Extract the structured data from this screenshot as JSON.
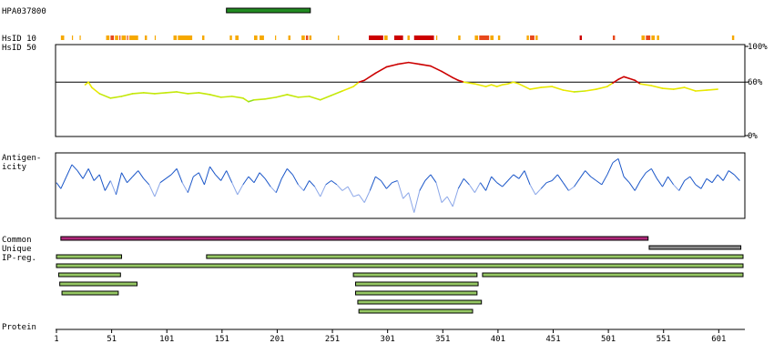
{
  "antibody_id": "HPA037800",
  "labels": {
    "hsid10": "HsID 10",
    "hsid50": "HsID 50",
    "antigenicity_line1": "Antigen-",
    "antigenicity_line2": "icity",
    "common": "Common",
    "unique": "Unique",
    "ipreg": "IP-reg.",
    "protein": "Protein"
  },
  "chart_data": {
    "type": "line",
    "sequence_length": 623,
    "x_ticks": [
      1,
      51,
      101,
      151,
      201,
      251,
      301,
      351,
      401,
      451,
      501,
      551,
      601
    ],
    "antigen_region": {
      "start": 155,
      "end": 231,
      "color": "#228b22"
    },
    "hsid10_segments": [
      {
        "start": 5,
        "end": 8,
        "color": "#f6a800"
      },
      {
        "start": 15,
        "end": 16,
        "color": "#f6a800"
      },
      {
        "start": 22,
        "end": 23,
        "color": "#f6a800"
      },
      {
        "start": 46,
        "end": 49,
        "color": "#f6a800"
      },
      {
        "start": 50,
        "end": 53,
        "color": "#e8481b"
      },
      {
        "start": 54,
        "end": 57,
        "color": "#f6a800"
      },
      {
        "start": 58,
        "end": 59,
        "color": "#e8481b"
      },
      {
        "start": 60,
        "end": 64,
        "color": "#f6a800"
      },
      {
        "start": 65,
        "end": 66,
        "color": "#e8481b"
      },
      {
        "start": 67,
        "end": 75,
        "color": "#f6a800"
      },
      {
        "start": 81,
        "end": 83,
        "color": "#f6a800"
      },
      {
        "start": 90,
        "end": 91,
        "color": "#f6a800"
      },
      {
        "start": 107,
        "end": 110,
        "color": "#f6a800"
      },
      {
        "start": 111,
        "end": 124,
        "color": "#f6a800"
      },
      {
        "start": 133,
        "end": 135,
        "color": "#f6a800"
      },
      {
        "start": 158,
        "end": 160,
        "color": "#f6a800"
      },
      {
        "start": 163,
        "end": 166,
        "color": "#f6a800"
      },
      {
        "start": 180,
        "end": 183,
        "color": "#f6a800"
      },
      {
        "start": 185,
        "end": 189,
        "color": "#f6a800"
      },
      {
        "start": 199,
        "end": 200,
        "color": "#f6a800"
      },
      {
        "start": 211,
        "end": 213,
        "color": "#f6a800"
      },
      {
        "start": 223,
        "end": 226,
        "color": "#f6a800"
      },
      {
        "start": 227,
        "end": 229,
        "color": "#e8481b"
      },
      {
        "start": 230,
        "end": 232,
        "color": "#f6a800"
      },
      {
        "start": 256,
        "end": 257,
        "color": "#f6a800"
      },
      {
        "start": 284,
        "end": 297,
        "color": "#cc0000"
      },
      {
        "start": 298,
        "end": 301,
        "color": "#f6a800"
      },
      {
        "start": 307,
        "end": 315,
        "color": "#cc0000"
      },
      {
        "start": 319,
        "end": 321,
        "color": "#f6a800"
      },
      {
        "start": 325,
        "end": 343,
        "color": "#cc0000"
      },
      {
        "start": 345,
        "end": 346,
        "color": "#f6a800"
      },
      {
        "start": 365,
        "end": 367,
        "color": "#f6a800"
      },
      {
        "start": 380,
        "end": 383,
        "color": "#f6a800"
      },
      {
        "start": 384,
        "end": 393,
        "color": "#e8481b"
      },
      {
        "start": 394,
        "end": 397,
        "color": "#f6a800"
      },
      {
        "start": 401,
        "end": 403,
        "color": "#f6a800"
      },
      {
        "start": 427,
        "end": 429,
        "color": "#f6a800"
      },
      {
        "start": 430,
        "end": 434,
        "color": "#e8481b"
      },
      {
        "start": 435,
        "end": 437,
        "color": "#f6a800"
      },
      {
        "start": 475,
        "end": 477,
        "color": "#cc0000"
      },
      {
        "start": 505,
        "end": 507,
        "color": "#e8481b"
      },
      {
        "start": 531,
        "end": 534,
        "color": "#f6a800"
      },
      {
        "start": 535,
        "end": 539,
        "color": "#e8481b"
      },
      {
        "start": 540,
        "end": 543,
        "color": "#f6a800"
      },
      {
        "start": 545,
        "end": 547,
        "color": "#f6a800"
      },
      {
        "start": 613,
        "end": 615,
        "color": "#f6a800"
      }
    ],
    "identity_panel": {
      "y_ticks": [
        "100%",
        "60%",
        "0%"
      ],
      "reference_value": 60,
      "ylim": [
        0,
        100
      ],
      "series": {
        "x": [
          27,
          30,
          33,
          40,
          50,
          60,
          70,
          80,
          90,
          100,
          110,
          120,
          130,
          140,
          150,
          160,
          170,
          175,
          180,
          190,
          200,
          210,
          220,
          230,
          240,
          250,
          260,
          270,
          275,
          280,
          290,
          300,
          310,
          320,
          330,
          340,
          350,
          360,
          365,
          370,
          380,
          390,
          395,
          400,
          405,
          410,
          415,
          420,
          430,
          440,
          450,
          460,
          470,
          480,
          490,
          500,
          505,
          510,
          515,
          520,
          525,
          530,
          540,
          550,
          560,
          570,
          580,
          590,
          600
        ],
        "y": [
          57,
          60,
          54,
          47,
          42,
          44,
          47,
          48,
          47,
          48,
          49,
          47,
          48,
          46,
          43,
          44,
          42,
          38,
          40,
          41,
          43,
          46,
          43,
          44,
          40,
          45,
          50,
          55,
          60,
          62,
          70,
          77,
          80,
          82,
          80,
          78,
          72,
          65,
          62,
          60,
          58,
          55,
          57,
          55,
          57,
          58,
          60,
          58,
          52,
          54,
          55,
          51,
          49,
          50,
          52,
          55,
          59,
          63,
          66,
          64,
          62,
          58,
          56,
          53,
          52,
          54,
          50,
          51,
          52
        ]
      },
      "color_scale": [
        {
          "min": 60,
          "color": "#cc0000"
        },
        {
          "min": 50,
          "color": "#e8e800"
        },
        {
          "min": 40,
          "color": "#c4e80a"
        },
        {
          "min": 0,
          "color": "#8ee020"
        }
      ]
    },
    "antigenicity_panel": {
      "x": [
        1,
        5,
        10,
        15,
        20,
        25,
        30,
        35,
        40,
        45,
        50,
        55,
        60,
        65,
        70,
        75,
        80,
        85,
        90,
        95,
        100,
        105,
        110,
        115,
        120,
        125,
        130,
        135,
        140,
        145,
        150,
        155,
        160,
        165,
        170,
        175,
        180,
        185,
        190,
        195,
        200,
        205,
        210,
        215,
        220,
        225,
        230,
        235,
        240,
        245,
        250,
        255,
        260,
        265,
        270,
        275,
        280,
        285,
        290,
        295,
        300,
        305,
        310,
        315,
        320,
        325,
        330,
        335,
        340,
        345,
        350,
        355,
        360,
        365,
        370,
        375,
        380,
        385,
        390,
        395,
        400,
        405,
        410,
        415,
        420,
        425,
        430,
        435,
        440,
        445,
        450,
        455,
        460,
        465,
        470,
        475,
        480,
        485,
        490,
        495,
        500,
        505,
        510,
        515,
        520,
        525,
        530,
        535,
        540,
        545,
        550,
        555,
        560,
        565,
        570,
        575,
        580,
        585,
        590,
        595,
        600,
        605,
        610,
        615,
        620
      ],
      "y": [
        0.2,
        -0.1,
        0.5,
        1.1,
        0.8,
        0.4,
        0.9,
        0.3,
        0.6,
        -0.2,
        0.3,
        -0.4,
        0.7,
        0.2,
        0.5,
        0.8,
        0.4,
        0.1,
        -0.5,
        0.2,
        0.4,
        0.6,
        0.9,
        0.2,
        -0.3,
        0.5,
        0.7,
        0.1,
        1.0,
        0.6,
        0.3,
        0.8,
        0.2,
        -0.4,
        0.1,
        0.5,
        0.2,
        0.7,
        0.4,
        0.0,
        -0.3,
        0.4,
        0.9,
        0.6,
        0.1,
        -0.2,
        0.3,
        0.0,
        -0.5,
        0.1,
        0.3,
        0.1,
        -0.2,
        0.0,
        -0.5,
        -0.4,
        -0.8,
        -0.2,
        0.5,
        0.3,
        -0.1,
        0.2,
        0.3,
        -0.6,
        -0.3,
        -1.3,
        -0.2,
        0.3,
        0.6,
        0.2,
        -0.8,
        -0.5,
        -1.0,
        -0.1,
        0.4,
        0.1,
        -0.3,
        0.2,
        -0.2,
        0.5,
        0.2,
        0.0,
        0.3,
        0.6,
        0.4,
        0.8,
        0.1,
        -0.4,
        -0.1,
        0.2,
        0.3,
        0.6,
        0.2,
        -0.2,
        0.0,
        0.4,
        0.8,
        0.5,
        0.3,
        0.1,
        0.6,
        1.2,
        1.4,
        0.5,
        0.2,
        -0.2,
        0.3,
        0.7,
        0.9,
        0.4,
        0.0,
        0.5,
        0.1,
        -0.2,
        0.3,
        0.5,
        0.1,
        -0.1,
        0.4,
        0.2,
        0.6,
        0.3,
        0.8,
        0.6,
        0.3
      ],
      "ylim": [
        -1.5,
        1.6
      ],
      "colors": {
        "high": "#1a56c8",
        "low": "#8aa6e8"
      }
    },
    "tracks": {
      "common": [
        {
          "start": 5,
          "end": 537,
          "color": "#b0287a"
        }
      ],
      "unique": [
        {
          "start": 538,
          "end": 621,
          "color": "#8c8c8c"
        }
      ],
      "ipreg": [
        [
          {
            "start": 1,
            "end": 60
          },
          {
            "start": 137,
            "end": 623
          }
        ],
        [
          {
            "start": 1,
            "end": 623
          }
        ],
        [
          {
            "start": 3,
            "end": 59
          },
          {
            "start": 270,
            "end": 382
          },
          {
            "start": 387,
            "end": 623
          }
        ],
        [
          {
            "start": 4,
            "end": 74
          },
          {
            "start": 272,
            "end": 383
          }
        ],
        [
          {
            "start": 6,
            "end": 57
          },
          {
            "start": 272,
            "end": 382
          }
        ],
        [
          {
            "start": 274,
            "end": 386
          }
        ],
        [
          {
            "start": 275,
            "end": 378
          }
        ]
      ],
      "ipreg_color": "#96c864"
    }
  }
}
